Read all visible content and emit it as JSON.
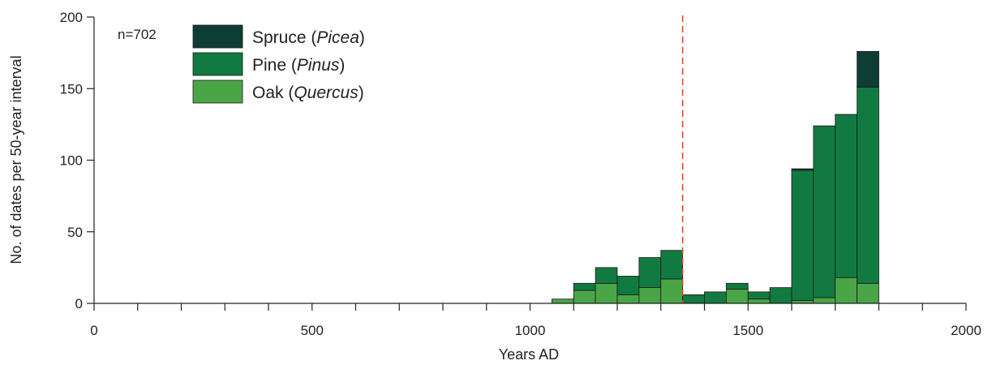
{
  "chart_data": {
    "type": "bar",
    "stacked": true,
    "annotation": "n=702",
    "xlabel": "Years AD",
    "ylabel": "No. of dates per 50-year interval",
    "xlim": [
      0,
      2000
    ],
    "ylim": [
      0,
      200
    ],
    "x_major_ticks": [
      0,
      500,
      1000,
      1500,
      2000
    ],
    "x_minor_step": 100,
    "y_ticks": [
      0,
      50,
      100,
      150,
      200
    ],
    "bin_width": 50,
    "reference_line": {
      "x": 1350,
      "color": "#e8412c",
      "style": "dashed"
    },
    "legend": [
      {
        "key": "spruce",
        "name": "Spruce",
        "latin": "Picea",
        "color": "#0e3d33"
      },
      {
        "key": "pine",
        "name": "Pine",
        "latin": "Pinus",
        "color": "#117a40"
      },
      {
        "key": "oak",
        "name": "Oak",
        "latin": "Quercus",
        "color": "#4aa546"
      }
    ],
    "bins": [
      1050,
      1100,
      1150,
      1200,
      1250,
      1300,
      1350,
      1400,
      1450,
      1500,
      1550,
      1600,
      1650,
      1700,
      1750
    ],
    "series": [
      {
        "name": "Oak (Quercus)",
        "key": "oak",
        "color": "#4aa546",
        "values": [
          3,
          9,
          14,
          6,
          11,
          17,
          0,
          0,
          10,
          3,
          0,
          2,
          4,
          18,
          14
        ]
      },
      {
        "name": "Pine (Pinus)",
        "key": "pine",
        "color": "#117a40",
        "values": [
          0,
          5,
          11,
          13,
          21,
          20,
          6,
          8,
          4,
          5,
          11,
          91,
          120,
          114,
          137
        ]
      },
      {
        "name": "Spruce (Picea)",
        "key": "spruce",
        "color": "#0e3d33",
        "values": [
          0,
          0,
          0,
          0,
          0,
          0,
          0,
          0,
          0,
          0,
          0,
          1,
          0,
          0,
          25
        ]
      }
    ]
  }
}
